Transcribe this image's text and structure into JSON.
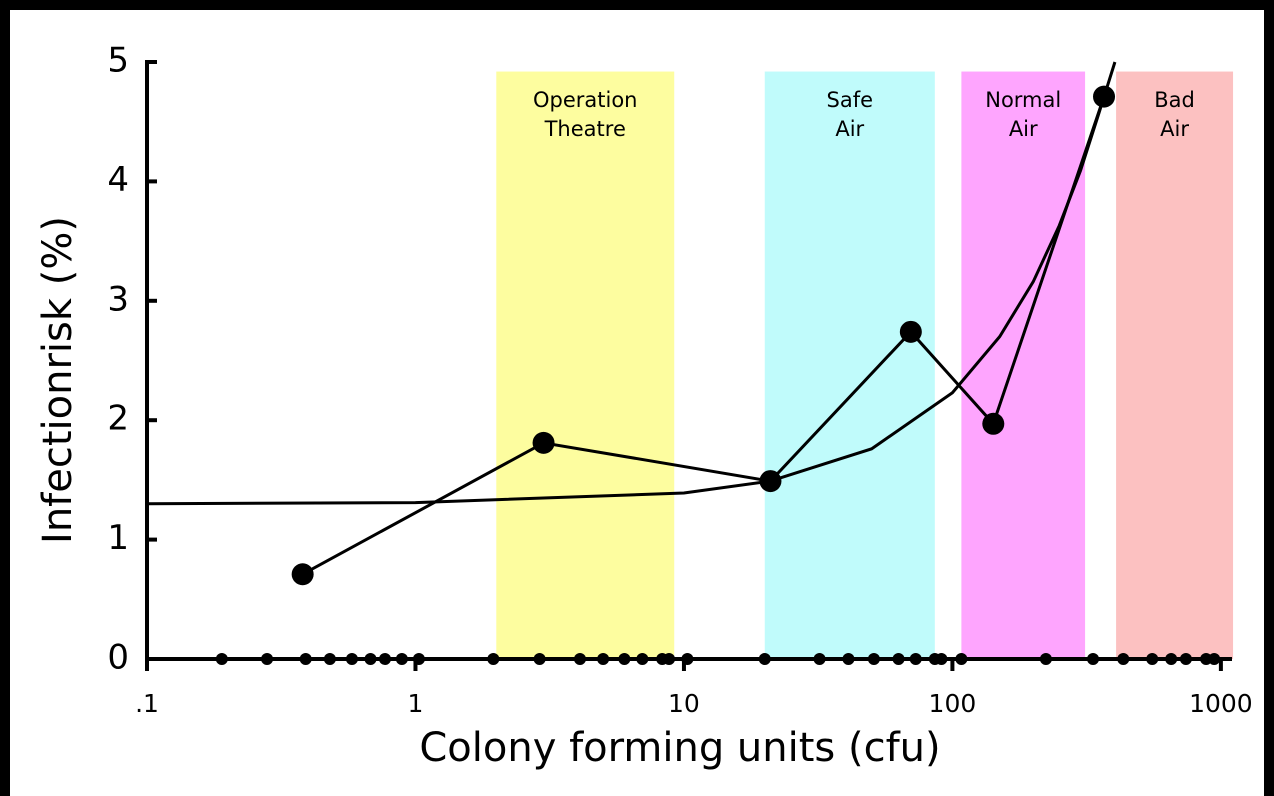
{
  "chart_data": {
    "type": "line",
    "xlabel": "Colony forming units (cfu)",
    "ylabel": "Infectionrisk (%)",
    "xscale": "log",
    "xlim": [
      0.1,
      1100
    ],
    "ylim": [
      0,
      5
    ],
    "xticks": [
      {
        "value": 0.1,
        "label": ".1"
      },
      1,
      10,
      100,
      1000
    ],
    "yticks": [
      0,
      1,
      2,
      3,
      4,
      5
    ],
    "regions": [
      {
        "label": [
          "Operation",
          "Theatre"
        ],
        "range": [
          2,
          9.2
        ],
        "top": 4.92,
        "color": "#fdfd9f"
      },
      {
        "label": [
          "Safe",
          "Air"
        ],
        "range": [
          20,
          86
        ],
        "top": 4.92,
        "color": "#c0fbfb"
      },
      {
        "label": [
          "Normal",
          "Air"
        ],
        "range": [
          108,
          312
        ],
        "top": 4.92,
        "color": "#fea5fe"
      },
      {
        "label": [
          "Bad",
          "Air"
        ],
        "range": [
          407,
          1110
        ],
        "top": 4.92,
        "color": "#fcc1c1"
      }
    ],
    "series": [
      {
        "color": "#000000",
        "marker": "large",
        "x": [
          0.38,
          3,
          21,
          70,
          142,
          367
        ],
        "values": [
          0.71,
          1.81,
          1.49,
          2.74,
          1.97,
          4.71
        ]
      },
      {
        "color": "#000000",
        "marker": "none",
        "x": [
          0.1,
          1,
          10,
          21,
          50,
          100,
          150,
          200,
          250,
          300,
          350,
          403
        ],
        "values": [
          1.3,
          1.31,
          1.39,
          1.49,
          1.76,
          2.23,
          2.7,
          3.16,
          3.63,
          4.09,
          4.56,
          5.0
        ]
      },
      {
        "color": "#000000",
        "marker": "small",
        "line": false,
        "x": [
          0.19,
          0.28,
          0.39,
          0.48,
          0.58,
          0.68,
          0.77,
          0.89,
          1.03,
          1.95,
          2.9,
          4.1,
          5,
          6,
          7,
          8.3,
          8.8,
          10.3,
          20,
          32,
          41,
          51,
          63,
          73,
          86,
          91,
          108,
          223,
          334,
          433,
          555,
          653,
          741,
          881,
          944
        ],
        "values": [
          0,
          0,
          0,
          0,
          0,
          0,
          0,
          0,
          0,
          0,
          0,
          0,
          0,
          0,
          0,
          0,
          0,
          0,
          0,
          0,
          0,
          0,
          0,
          0,
          0,
          0,
          0,
          0,
          0,
          0,
          0,
          0,
          0,
          0,
          0
        ]
      }
    ]
  }
}
